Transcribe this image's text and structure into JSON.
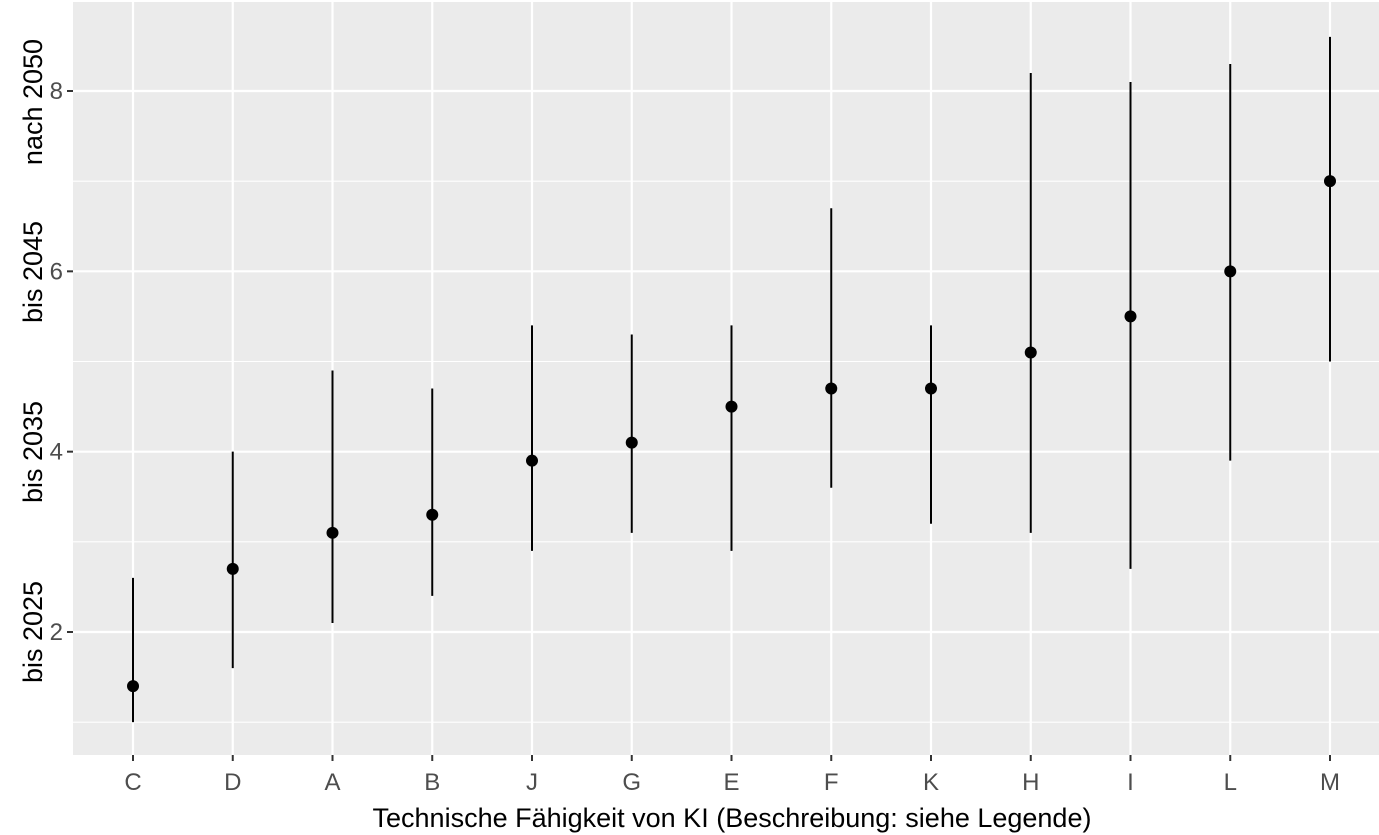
{
  "chart_data": {
    "type": "scatter",
    "subtype": "pointrange",
    "title": "",
    "xlabel": "Technische Fähigkeit von KI (Beschreibung: siehe Legende)",
    "ylabel_segments": [
      "bis 2025",
      "bis 2035",
      "bis 2045",
      "nach 2050"
    ],
    "categories": [
      "C",
      "D",
      "A",
      "B",
      "J",
      "G",
      "E",
      "F",
      "K",
      "H",
      "I",
      "L",
      "M"
    ],
    "points": [
      {
        "category": "C",
        "y": 1.4,
        "low": 1.0,
        "high": 2.6
      },
      {
        "category": "D",
        "y": 2.7,
        "low": 1.6,
        "high": 4.0
      },
      {
        "category": "A",
        "y": 3.1,
        "low": 2.1,
        "high": 4.9
      },
      {
        "category": "B",
        "y": 3.3,
        "low": 2.4,
        "high": 4.7
      },
      {
        "category": "J",
        "y": 3.9,
        "low": 2.9,
        "high": 5.4
      },
      {
        "category": "G",
        "y": 4.1,
        "low": 3.1,
        "high": 5.3
      },
      {
        "category": "E",
        "y": 4.5,
        "low": 2.9,
        "high": 5.4
      },
      {
        "category": "F",
        "y": 4.7,
        "low": 3.6,
        "high": 6.7
      },
      {
        "category": "K",
        "y": 4.7,
        "low": 3.2,
        "high": 5.4
      },
      {
        "category": "H",
        "y": 5.1,
        "low": 3.1,
        "high": 8.2
      },
      {
        "category": "I",
        "y": 5.5,
        "low": 2.7,
        "high": 8.1
      },
      {
        "category": "L",
        "y": 6.0,
        "low": 3.9,
        "high": 8.3
      },
      {
        "category": "M",
        "y": 7.0,
        "low": 5.0,
        "high": 8.6
      }
    ],
    "y_ticks": [
      2,
      4,
      6,
      8
    ],
    "ylim": [
      0.65,
      9.0
    ],
    "grid": true,
    "panel_background": "#ebebeb",
    "grid_color": "#ffffff",
    "mark_color": "#000000",
    "tick_label_color": "#4d4d4d"
  }
}
